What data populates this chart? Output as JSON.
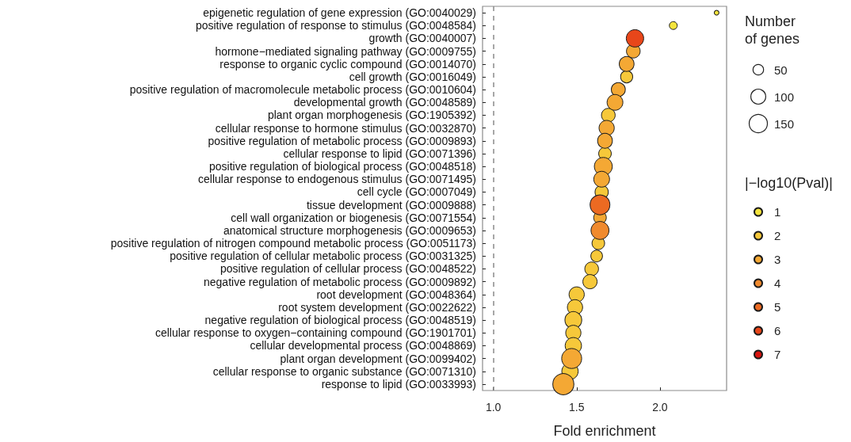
{
  "chart_data": {
    "type": "bubble",
    "xlabel": "Fold enrichment",
    "legend_title": "|−log10(Pval)|",
    "annotations": [
      "Number of genes"
    ],
    "categories": [
      "epigenetic regulation of gene expression (GO:0040029)",
      "positive regulation of response to stimulus (GO:0048584)",
      "growth (GO:0040007)",
      "hormone−mediated signaling pathway (GO:0009755)",
      "response to organic cyclic compound (GO:0014070)",
      "cell growth (GO:0016049)",
      "positive regulation of macromolecule metabolic process (GO:0010604)",
      "developmental growth (GO:0048589)",
      "plant organ morphogenesis (GO:1905392)",
      "cellular response to hormone stimulus (GO:0032870)",
      "positive regulation of metabolic process (GO:0009893)",
      "cellular response to lipid (GO:0071396)",
      "positive regulation of biological process (GO:0048518)",
      "cellular response to endogenous stimulus (GO:0071495)",
      "cell cycle (GO:0007049)",
      "tissue development (GO:0009888)",
      "cell wall organization or biogenesis (GO:0071554)",
      "anatomical structure morphogenesis (GO:0009653)",
      "positive regulation of nitrogen compound metabolic process (GO:0051173)",
      "positive regulation of cellular metabolic process (GO:0031325)",
      "positive regulation of cellular process (GO:0048522)",
      "negative regulation of metabolic process (GO:0009892)",
      "root development (GO:0048364)",
      "root system development (GO:0022622)",
      "negative regulation of biological process (GO:0048519)",
      "cellular response to oxygen−containing compound (GO:1901701)",
      "cellular developmental process (GO:0048869)",
      "plant organ development (GO:0099402)",
      "cellular response to organic substance (GO:0071310)",
      "response to lipid (GO:0033993)"
    ],
    "series": [
      {
        "name": "1",
        "color": "#f4e43c",
        "values": [
          2.34,
          2.08,
          null,
          null,
          null,
          null,
          null,
          null,
          null,
          null,
          null,
          null,
          null,
          null,
          null,
          null,
          null,
          null,
          null,
          null,
          null,
          null,
          null,
          null,
          null,
          null,
          null,
          null,
          null,
          null
        ],
        "sizes": [
          10,
          28,
          null,
          null,
          null,
          null,
          null,
          null,
          null,
          null,
          null,
          null,
          null,
          null,
          null,
          null,
          null,
          null,
          null,
          null,
          null,
          null,
          null,
          null,
          null,
          null,
          null,
          null,
          null,
          null
        ]
      },
      {
        "name": "2",
        "color": "#f6c83a",
        "values": [
          null,
          null,
          null,
          null,
          null,
          1.8,
          null,
          null,
          1.69,
          null,
          null,
          1.67,
          null,
          null,
          1.65,
          null,
          null,
          null,
          1.63,
          1.62,
          1.59,
          1.58,
          1.5,
          1.49,
          1.48,
          1.48,
          1.48,
          null,
          1.46,
          null
        ],
        "sizes": [
          null,
          null,
          null,
          null,
          null,
          66,
          null,
          null,
          85,
          null,
          null,
          72,
          null,
          null,
          79,
          null,
          null,
          null,
          72,
          61,
          85,
          92,
          105,
          105,
          128,
          105,
          121,
          null,
          121,
          null
        ]
      },
      {
        "name": "3",
        "color": "#f4a834",
        "values": [
          null,
          null,
          null,
          1.84,
          1.8,
          null,
          1.75,
          1.73,
          null,
          1.68,
          1.67,
          null,
          1.66,
          1.65,
          null,
          null,
          1.64,
          null,
          null,
          null,
          null,
          null,
          null,
          null,
          null,
          null,
          null,
          1.47,
          null,
          1.42
        ],
        "sizes": [
          null,
          null,
          null,
          85,
          99,
          null,
          88,
          113,
          null,
          105,
          99,
          null,
          146,
          113,
          null,
          null,
          72,
          null,
          null,
          null,
          null,
          null,
          null,
          null,
          null,
          null,
          null,
          181,
          null,
          201
        ]
      },
      {
        "name": "4",
        "color": "#f08a2e",
        "values": [
          null,
          null,
          null,
          null,
          null,
          null,
          null,
          null,
          null,
          null,
          null,
          null,
          null,
          null,
          null,
          null,
          null,
          1.64,
          null,
          null,
          null,
          null,
          null,
          null,
          null,
          null,
          null,
          null,
          null,
          null
        ],
        "sizes": [
          null,
          null,
          null,
          null,
          null,
          null,
          null,
          null,
          null,
          null,
          null,
          null,
          null,
          null,
          null,
          null,
          null,
          146,
          null,
          null,
          null,
          null,
          null,
          null,
          null,
          null,
          null,
          null,
          null,
          null
        ]
      },
      {
        "name": "5",
        "color": "#ec6a22",
        "values": [
          null,
          null,
          null,
          null,
          null,
          null,
          null,
          null,
          null,
          null,
          null,
          null,
          null,
          null,
          null,
          1.64,
          null,
          null,
          null,
          null,
          null,
          null,
          null,
          null,
          null,
          null,
          null,
          null,
          null,
          null
        ],
        "sizes": [
          null,
          null,
          null,
          null,
          null,
          null,
          null,
          null,
          null,
          null,
          null,
          null,
          null,
          null,
          null,
          177,
          null,
          null,
          null,
          null,
          null,
          null,
          null,
          null,
          null,
          null,
          null,
          null,
          null,
          null
        ]
      },
      {
        "name": "6",
        "color": "#e8461a",
        "values": [
          null,
          null,
          1.85,
          null,
          null,
          null,
          null,
          null,
          null,
          null,
          null,
          null,
          null,
          null,
          null,
          null,
          null,
          null,
          null,
          null,
          null,
          null,
          null,
          null,
          null,
          null,
          null,
          null,
          null,
          null
        ],
        "sizes": [
          null,
          null,
          137,
          null,
          null,
          null,
          null,
          null,
          null,
          null,
          null,
          null,
          null,
          null,
          null,
          null,
          null,
          null,
          null,
          null,
          null,
          null,
          null,
          null,
          null,
          null,
          null,
          null,
          null,
          null
        ]
      },
      {
        "name": "7",
        "color": "#d9140f",
        "values": [
          null,
          null,
          null,
          null,
          null,
          null,
          null,
          null,
          null,
          null,
          null,
          null,
          null,
          null,
          null,
          null,
          null,
          null,
          null,
          null,
          null,
          null,
          null,
          null,
          null,
          null,
          null,
          null,
          null,
          null
        ],
        "sizes": [
          null,
          null,
          null,
          null,
          null,
          null,
          null,
          null,
          null,
          null,
          null,
          null,
          null,
          null,
          null,
          null,
          null,
          null,
          null,
          null,
          null,
          null,
          null,
          null,
          null,
          null,
          null,
          null,
          null,
          null
        ]
      }
    ],
    "size_legend": [
      50,
      100,
      150
    ],
    "xlim": [
      0.935,
      2.4
    ],
    "xticks": [
      {
        "value": 1,
        "label": "1.0"
      },
      {
        "value": 1.5,
        "label": "1.5"
      },
      {
        "value": 2,
        "label": "2.0"
      }
    ],
    "orientation": "horizontal",
    "ref_lines": [
      {
        "axis": "x",
        "value": 1,
        "color": "#8a8a8a",
        "line_style": "dashed"
      }
    ],
    "grid": false,
    "legend": "right"
  }
}
